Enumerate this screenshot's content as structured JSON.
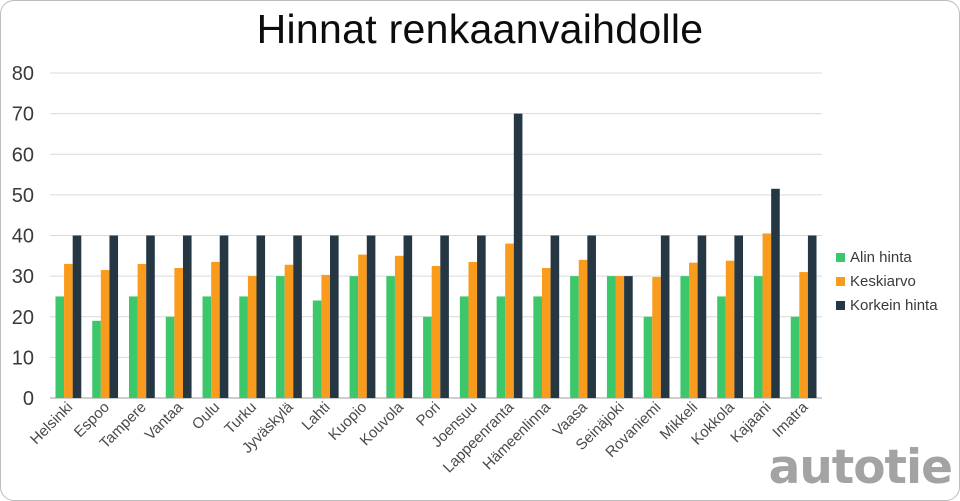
{
  "chart_data": {
    "type": "bar",
    "title": "Hinnat renkaanvaihdolle",
    "xlabel": "",
    "ylabel": "",
    "ylim": [
      0,
      80
    ],
    "yticks": [
      "0",
      "10",
      "20",
      "30",
      "40",
      "50",
      "60",
      "70",
      "80"
    ],
    "grid": true,
    "legend_position": "right",
    "categories": [
      "Helsinki",
      "Espoo",
      "Tampere",
      "Vantaa",
      "Oulu",
      "Turku",
      "Jyväskylä",
      "Lahti",
      "Kuopio",
      "Kouvola",
      "Pori",
      "Joensuu",
      "Lappeenranta",
      "Hämeenlinna",
      "Vaasa",
      "Seinäjoki",
      "Rovaniemi",
      "Mikkeli",
      "Kokkola",
      "Kajaani",
      "Imatra"
    ],
    "series": [
      {
        "name": "Alin hinta",
        "color": "#3cc76a",
        "values": [
          25,
          19,
          25,
          20,
          25,
          25,
          30,
          24,
          30,
          30,
          20,
          25,
          25,
          25,
          30,
          30,
          20,
          30,
          25,
          30,
          20
        ]
      },
      {
        "name": "Keskiarvo",
        "color": "#f99b1c",
        "values": [
          33,
          31.5,
          33,
          32,
          33.5,
          30,
          32.8,
          30.3,
          35.3,
          35,
          32.5,
          33.5,
          38,
          32,
          34,
          30,
          29.8,
          33.3,
          33.8,
          40.5,
          31
        ]
      },
      {
        "name": "Korkein hinta",
        "color": "#253743",
        "values": [
          40,
          40,
          40,
          40,
          40,
          40,
          40,
          40,
          40,
          40,
          40,
          40,
          70,
          40,
          40,
          30,
          40,
          40,
          40,
          51.5,
          40
        ]
      }
    ]
  },
  "brand": {
    "logo_text": "autotie",
    "logo_color": "#a3a3a3"
  }
}
